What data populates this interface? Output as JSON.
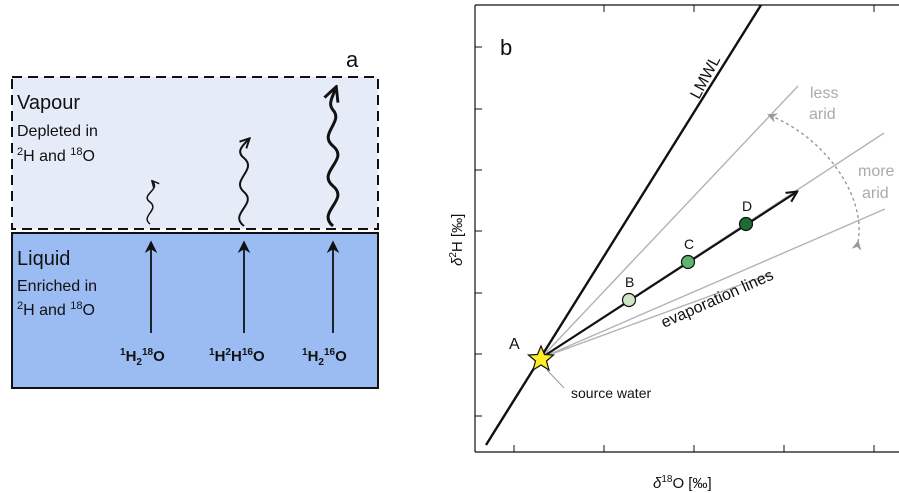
{
  "panel_a": {
    "letter": "a",
    "vapour": {
      "title": "Vapour",
      "line1": "Depleted in",
      "line2_h_sup": "2",
      "line2_h": "H and ",
      "line2_o_sup": "18",
      "line2_o": "O"
    },
    "liquid": {
      "title": "Liquid",
      "line1": "Enriched in",
      "line2_h_sup": "2",
      "line2_h": "H and ",
      "line2_o_sup": "18",
      "line2_o": "O"
    },
    "molecules": [
      {
        "s1": "1",
        "b1": "H",
        "sub": "2",
        "s2": "18",
        "b2": "O"
      },
      {
        "s1": "1",
        "b1": "H",
        "s2": "2",
        "b2": "H",
        "s3": "16",
        "b3": "O"
      },
      {
        "s1": "1",
        "b1": "H",
        "sub": "2",
        "s2": "16",
        "b2": "O"
      }
    ],
    "colors": {
      "vapour": "#e6ebf8",
      "liquid": "#9bbcf2"
    }
  },
  "panel_b": {
    "letter": "b",
    "lmwl_label": "LMWL",
    "less_arid": [
      "less",
      "arid"
    ],
    "more_arid": [
      "more",
      "arid"
    ],
    "evaporation_label": "evaporation lines",
    "source_label": "source water",
    "points": {
      "A": "A",
      "B": "B",
      "C": "C",
      "D": "D"
    },
    "xlabel": {
      "delta": "δ",
      "sup": "18",
      "rest": "O [‰]"
    },
    "ylabel": {
      "delta": "δ",
      "sup": "2",
      "rest": "H [‰]"
    },
    "colors": {
      "B": "#cfe8c4",
      "C": "#5fb36b",
      "D": "#1f6b35",
      "star": "#ffee22",
      "lines": "#b3b3b3"
    }
  }
}
